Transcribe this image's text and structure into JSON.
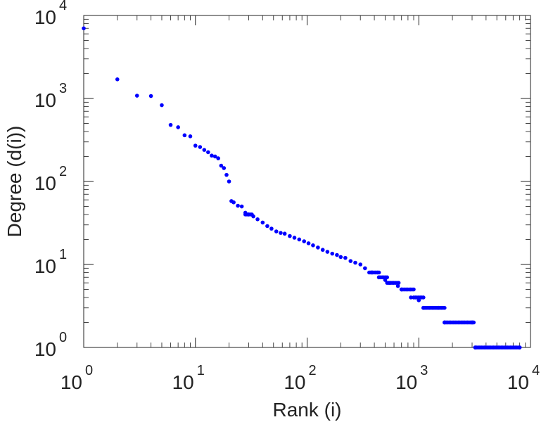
{
  "chart_data": {
    "type": "scatter",
    "title": "",
    "xlabel": "Rank (i)",
    "ylabel": "Degree (d(i))",
    "xscale": "log",
    "yscale": "log",
    "xlim": [
      1,
      10000
    ],
    "ylim": [
      1,
      10000
    ],
    "grid": false,
    "legend": "none",
    "marker_color": "#0000ff",
    "x_ticks": [
      {
        "base": "10",
        "exp": "0"
      },
      {
        "base": "10",
        "exp": "1"
      },
      {
        "base": "10",
        "exp": "2"
      },
      {
        "base": "10",
        "exp": "3"
      },
      {
        "base": "10",
        "exp": "4"
      }
    ],
    "y_ticks": [
      {
        "base": "10",
        "exp": "0"
      },
      {
        "base": "10",
        "exp": "1"
      },
      {
        "base": "10",
        "exp": "2"
      },
      {
        "base": "10",
        "exp": "3"
      },
      {
        "base": "10",
        "exp": "4"
      }
    ],
    "series": [
      {
        "points": [
          [
            1,
            7000
          ],
          [
            2,
            1700
          ],
          [
            3,
            1080
          ],
          [
            4,
            1070
          ],
          [
            5,
            830
          ],
          [
            6,
            480
          ],
          [
            7,
            450
          ],
          [
            8,
            360
          ],
          [
            9,
            350
          ],
          [
            10,
            270
          ],
          [
            11,
            260
          ],
          [
            12,
            240
          ],
          [
            13,
            225
          ],
          [
            14,
            205
          ],
          [
            15,
            200
          ],
          [
            16,
            190
          ],
          [
            17,
            155
          ],
          [
            18,
            145
          ],
          [
            19,
            120
          ],
          [
            20,
            100
          ],
          [
            21,
            58
          ],
          [
            22,
            56
          ],
          [
            24,
            51
          ],
          [
            26,
            50
          ],
          [
            28,
            42
          ],
          [
            30,
            40
          ],
          [
            33,
            38
          ],
          [
            36,
            35
          ],
          [
            40,
            32
          ],
          [
            44,
            29
          ],
          [
            48,
            27
          ],
          [
            53,
            25
          ],
          [
            58,
            24
          ],
          [
            63,
            23.5
          ],
          [
            70,
            22
          ],
          [
            77,
            21
          ],
          [
            85,
            20
          ],
          [
            94,
            19
          ],
          [
            103,
            18
          ],
          [
            113,
            17
          ],
          [
            125,
            16
          ],
          [
            138,
            15
          ],
          [
            152,
            14.2
          ],
          [
            168,
            13.5
          ],
          [
            185,
            13
          ],
          [
            200,
            12.3
          ],
          [
            220,
            12
          ],
          [
            245,
            11
          ],
          [
            270,
            10.5
          ],
          [
            300,
            10
          ],
          [
            330,
            9
          ],
          [
            380,
            8
          ],
          [
            440,
            7
          ],
          [
            500,
            6.5
          ],
          [
            550,
            6
          ],
          [
            650,
            5.5
          ],
          [
            700,
            5
          ],
          [
            850,
            4
          ],
          [
            1000,
            3.7
          ],
          [
            1100,
            3
          ],
          [
            1500,
            3
          ],
          [
            1700,
            2
          ],
          [
            3000,
            2
          ],
          [
            3200,
            1
          ],
          [
            8000,
            1
          ]
        ],
        "horizontal_runs": [
          {
            "y": 40,
            "x_start": 28,
            "x_end": 32
          },
          {
            "y": 8,
            "x_start": 360,
            "x_end": 440
          },
          {
            "y": 7,
            "x_start": 440,
            "x_end": 520
          },
          {
            "y": 6,
            "x_start": 520,
            "x_end": 660
          },
          {
            "y": 5,
            "x_start": 700,
            "x_end": 900
          },
          {
            "y": 4,
            "x_start": 900,
            "x_end": 1100
          },
          {
            "y": 3,
            "x_start": 1100,
            "x_end": 1700
          },
          {
            "y": 2,
            "x_start": 1700,
            "x_end": 3100
          },
          {
            "y": 1,
            "x_start": 3200,
            "x_end": 8000
          }
        ]
      }
    ]
  }
}
